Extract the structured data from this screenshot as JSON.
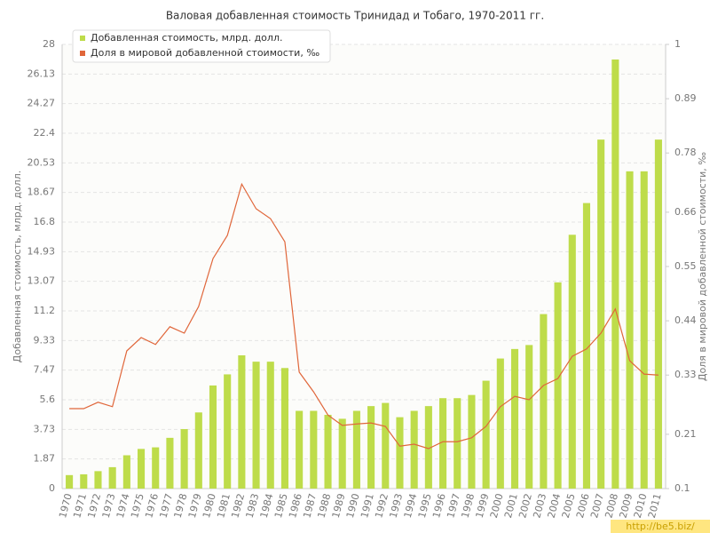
{
  "chart_data": {
    "type": "bar",
    "title": "Валовая добавленная стоимость Тринидад и Тобаго, 1970-2011 гг.",
    "y_label": "Добавленная стоимость, млрд. долл.",
    "y2_label": "Доля в мировой добавленной стоимости, ‰",
    "watermark": "http://be5.biz/",
    "categories": [
      "1970",
      "1971",
      "1972",
      "1973",
      "1974",
      "1975",
      "1976",
      "1977",
      "1978",
      "1979",
      "1980",
      "1981",
      "1982",
      "1983",
      "1984",
      "1985",
      "1986",
      "1987",
      "1988",
      "1989",
      "1990",
      "1991",
      "1992",
      "1993",
      "1994",
      "1995",
      "1996",
      "1997",
      "1998",
      "1999",
      "2000",
      "2001",
      "2002",
      "2003",
      "2004",
      "2005",
      "2006",
      "2007",
      "2008",
      "2009",
      "2010",
      "2011"
    ],
    "series": [
      {
        "name": "Добавленная стоимость, млрд. долл.",
        "color": "#bedc4a",
        "type": "bar",
        "values": [
          0.85,
          0.9,
          1.1,
          1.35,
          2.1,
          2.5,
          2.6,
          3.2,
          3.75,
          4.8,
          6.5,
          7.2,
          8.4,
          8.0,
          8.0,
          7.6,
          4.9,
          4.9,
          4.65,
          4.4,
          4.9,
          5.2,
          5.4,
          4.5,
          4.9,
          5.2,
          5.7,
          5.7,
          5.9,
          6.8,
          8.2,
          8.8,
          9.05,
          11.0,
          13.0,
          16.0,
          18.0,
          22.0,
          27.05,
          20.0,
          20.0,
          22.0
        ]
      },
      {
        "name": "Доля в мировой добавленной стоимости, ‰",
        "color": "#e0663a",
        "type": "line",
        "axis": "y2",
        "values": [
          0.262,
          0.262,
          0.275,
          0.266,
          0.379,
          0.406,
          0.392,
          0.428,
          0.415,
          0.469,
          0.566,
          0.613,
          0.717,
          0.667,
          0.647,
          0.6,
          0.336,
          0.296,
          0.249,
          0.228,
          0.231,
          0.233,
          0.226,
          0.186,
          0.19,
          0.181,
          0.195,
          0.195,
          0.203,
          0.226,
          0.266,
          0.287,
          0.28,
          0.309,
          0.323,
          0.368,
          0.383,
          0.415,
          0.464,
          0.359,
          0.332,
          0.33
        ]
      }
    ],
    "ylim": [
      0,
      28
    ],
    "yticks": [
      0,
      1.87,
      3.73,
      5.6,
      7.47,
      9.33,
      11.2,
      13.07,
      14.93,
      16.8,
      18.67,
      20.53,
      22.4,
      24.27,
      26.13,
      28
    ],
    "y2lim": [
      0.1,
      1
    ],
    "y2ticks": [
      0.1,
      0.21,
      0.33,
      0.44,
      0.55,
      0.66,
      0.78,
      0.89,
      1
    ],
    "grid": true
  }
}
